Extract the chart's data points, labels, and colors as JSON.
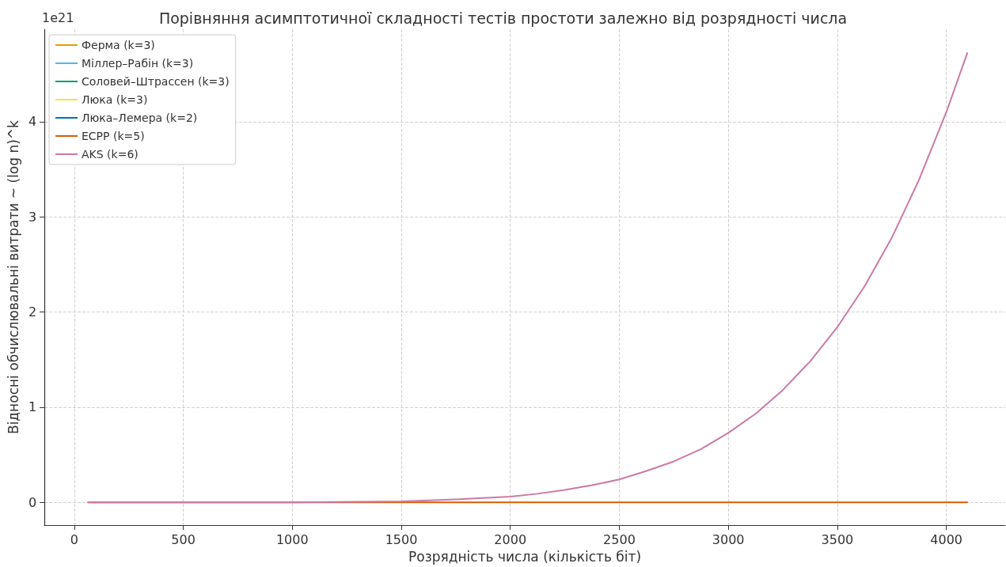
{
  "chart_data": {
    "type": "line",
    "title": "Порівняння асимптотичної складності тестів простоти залежно від розрядності числа",
    "xlabel": "Розрядність числа (кількість біт)",
    "ylabel": "Відносні обчислювальні витрати ~ (log n)^k",
    "annotations": [
      "1e21"
    ],
    "series": [
      {
        "name": "Ферма (k=3)",
        "color": "#e69f00"
      },
      {
        "name": "Міллер–Рабін (k=3)",
        "color": "#56b4e9"
      },
      {
        "name": "Соловей–Штрассен (k=3)",
        "color": "#009e73"
      },
      {
        "name": "Люка (k=3)",
        "color": "#f0e442"
      },
      {
        "name": "Люка–Лемера (k=2)",
        "color": "#0072b2"
      },
      {
        "name": "ECPP (k=5)",
        "color": "#d55e00",
        "x": [
          64,
          4096
        ],
        "values": [
          0,
          0
        ]
      },
      {
        "name": "AKS (k=6)",
        "color": "#cc79a7",
        "x": [
          64,
          500,
          1000,
          1500,
          1750,
          2000,
          2125,
          2250,
          2375,
          2500,
          2625,
          2750,
          2875,
          3000,
          3125,
          3250,
          3375,
          3500,
          3625,
          3750,
          3875,
          4000,
          4096
        ],
        "values": [
          0,
          0,
          0,
          0.01,
          0.03,
          0.06,
          0.09,
          0.13,
          0.18,
          0.24,
          0.33,
          0.43,
          0.56,
          0.73,
          0.93,
          1.18,
          1.48,
          1.84,
          2.27,
          2.78,
          3.39,
          4.1,
          4.72
        ]
      }
    ],
    "xlim": [
      -137,
      4270
    ],
    "xticks": [
      0,
      500,
      1000,
      1500,
      2000,
      2500,
      3000,
      3500,
      4000
    ],
    "ylim": [
      -0.24,
      4.97
    ],
    "yticks": [
      0,
      1,
      2,
      3,
      4
    ],
    "grid": true,
    "legend": "top left",
    "marker": "none",
    "line_style": "solid"
  }
}
